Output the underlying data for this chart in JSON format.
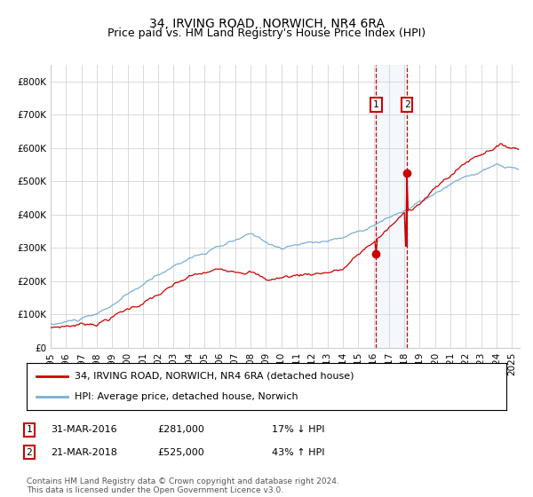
{
  "title": "34, IRVING ROAD, NORWICH, NR4 6RA",
  "subtitle": "Price paid vs. HM Land Registry's House Price Index (HPI)",
  "ylim": [
    0,
    850000
  ],
  "yticks": [
    0,
    100000,
    200000,
    300000,
    400000,
    500000,
    600000,
    700000,
    800000
  ],
  "ytick_labels": [
    "£0",
    "£100K",
    "£200K",
    "£300K",
    "£400K",
    "£500K",
    "£600K",
    "£700K",
    "£800K"
  ],
  "sale1_price": 281000,
  "sale1_label": "31-MAR-2016",
  "sale2_price": 525000,
  "sale2_label": "21-MAR-2018",
  "hpi_color": "#7bafd4",
  "price_color": "#cc0000",
  "marker_color": "#cc0000",
  "vline_color": "#cc0000",
  "shade_color": "#dce9f7",
  "background_color": "#ffffff",
  "grid_color": "#cccccc",
  "legend1": "34, IRVING ROAD, NORWICH, NR4 6RA (detached house)",
  "legend2": "HPI: Average price, detached house, Norwich",
  "note1_date": "31-MAR-2016",
  "note1_price": "£281,000",
  "note1_hpi": "17% ↓ HPI",
  "note2_date": "21-MAR-2018",
  "note2_price": "£525,000",
  "note2_hpi": "43% ↑ HPI",
  "footer": "Contains HM Land Registry data © Crown copyright and database right 2024.\nThis data is licensed under the Open Government Licence v3.0.",
  "title_fontsize": 10,
  "subtitle_fontsize": 9,
  "axis_fontsize": 7.5
}
